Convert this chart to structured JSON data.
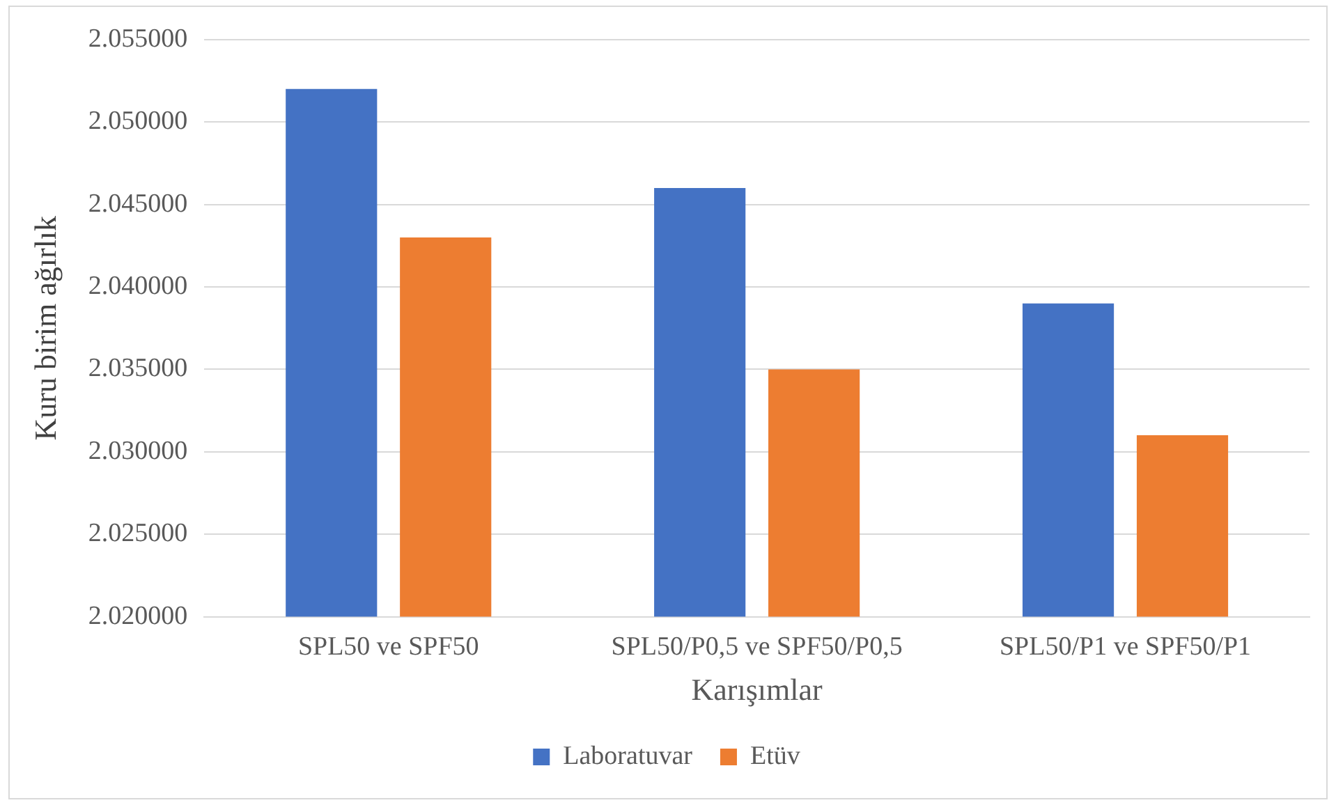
{
  "chart_data": {
    "type": "bar",
    "xlabel": "Karışımlar",
    "ylabel": "Kuru birim ağırlık",
    "categories": [
      "SPL50 ve SPF50",
      "SPL50/P0,5 ve SPF50/P0,5",
      "SPL50/P1 ve SPF50/P1"
    ],
    "series": [
      {
        "name": "Laboratuvar",
        "color": "#4472c4",
        "values": [
          2.052,
          2.046,
          2.039
        ]
      },
      {
        "name": "Etüv",
        "color": "#ed7d31",
        "values": [
          2.043,
          2.035,
          2.031
        ]
      }
    ],
    "ylim": [
      2.02,
      2.055
    ],
    "yticks": [
      {
        "value": 2.02,
        "label": "2.020000"
      },
      {
        "value": 2.025,
        "label": "2.025000"
      },
      {
        "value": 2.03,
        "label": "2.030000"
      },
      {
        "value": 2.035,
        "label": "2.035000"
      },
      {
        "value": 2.04,
        "label": "2.040000"
      },
      {
        "value": 2.045,
        "label": "2.045000"
      },
      {
        "value": 2.05,
        "label": "2.050000"
      },
      {
        "value": 2.055,
        "label": "2.055000"
      }
    ],
    "grid": "y",
    "legend": "bottom"
  }
}
